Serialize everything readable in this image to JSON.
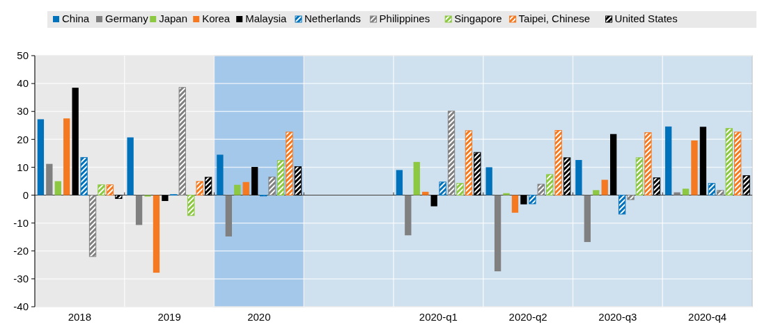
{
  "chart_data": {
    "type": "bar",
    "categories": [
      "2018",
      "2019",
      "2020",
      null,
      "2020-q1",
      "2020-q2",
      "2020-q3",
      "2020-q4"
    ],
    "series": [
      {
        "name": "China",
        "color": "#0072bc",
        "values": [
          27.2,
          20.7,
          14.5,
          null,
          9,
          10,
          12.6,
          24.6
        ]
      },
      {
        "name": "Germany",
        "color": "#808080",
        "values": [
          11.2,
          -10.7,
          -14.8,
          null,
          -14.4,
          -27.3,
          -16.8,
          1
        ]
      },
      {
        "name": "Japan",
        "color": "#8cc841",
        "values": [
          5,
          -0.5,
          3.7,
          null,
          11.9,
          0.7,
          1.8,
          2.3
        ]
      },
      {
        "name": "Korea",
        "color": "#f47920",
        "values": [
          27.5,
          -27.8,
          4.7,
          null,
          1.2,
          -6.3,
          5.5,
          19.6
        ]
      },
      {
        "name": "Malaysia",
        "color": "#000000",
        "values": [
          38.5,
          -2.1,
          10.1,
          null,
          -4,
          -3.3,
          21.9,
          24.5
        ]
      },
      {
        "name": "Netherlands",
        "color": "#0072bc",
        "values": [
          13.5,
          0.2,
          -0.3,
          null,
          4.7,
          -3.1,
          -6.8,
          4.2
        ]
      },
      {
        "name": "Philippines",
        "color": "#808080",
        "values": [
          -22,
          38.6,
          6.5,
          null,
          30.1,
          3.9,
          -1.6,
          1.7
        ]
      },
      {
        "name": "Singapore",
        "color": "#8cc841",
        "values": [
          3.7,
          -7.3,
          12.4,
          null,
          4.2,
          7.4,
          13.4,
          23.9
        ]
      },
      {
        "name": "Taipei, Chinese",
        "color": "#f47920",
        "values": [
          3.7,
          4.9,
          22.6,
          null,
          23.1,
          23.2,
          22.4,
          22.6
        ]
      },
      {
        "name": "United States",
        "color": "#000000",
        "values": [
          -1.2,
          6.4,
          10.2,
          null,
          15.3,
          13.4,
          6.2,
          7
        ]
      }
    ],
    "ylim": [
      -40,
      50
    ],
    "yticks": [
      -40,
      -30,
      -20,
      -10,
      0,
      10,
      20,
      30,
      40,
      50
    ],
    "bands": [
      {
        "axis": "x",
        "from": "2018",
        "to": "2019",
        "color": "#e9e9e9"
      },
      {
        "axis": "x",
        "from": "2020",
        "to": "2020-q4",
        "color": "#cfe0ef"
      },
      {
        "axis": "x",
        "from": "2020",
        "to": "2020",
        "color": "#a3c8e9"
      }
    ],
    "grid": true,
    "legend": "top"
  }
}
